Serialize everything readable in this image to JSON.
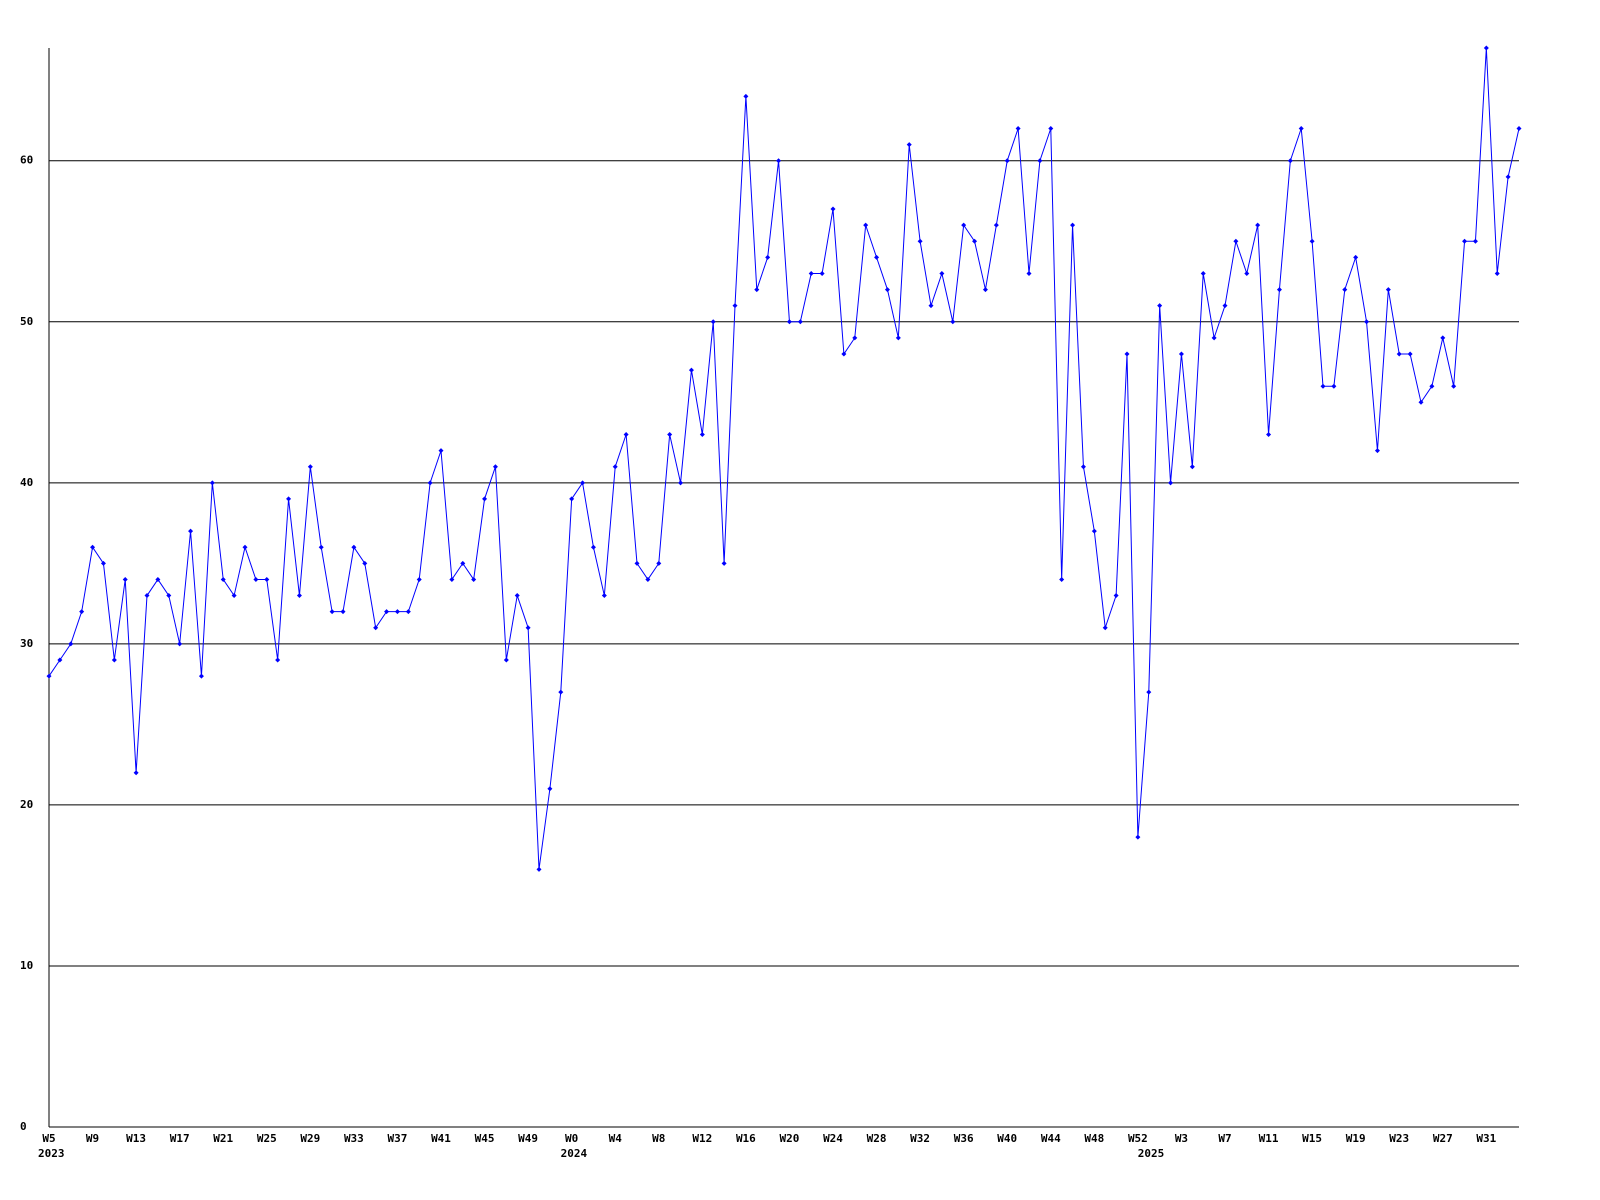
{
  "chart_data": {
    "type": "line",
    "color": "#0000ff",
    "grid": true,
    "categories": [
      "W5",
      null,
      null,
      null,
      "W9",
      null,
      null,
      null,
      "W13",
      null,
      null,
      null,
      "W17",
      null,
      null,
      null,
      "W21",
      null,
      null,
      null,
      "W25",
      null,
      null,
      null,
      "W29",
      null,
      null,
      null,
      "W33",
      null,
      null,
      null,
      "W37",
      null,
      null,
      null,
      "W41",
      null,
      null,
      null,
      "W45",
      null,
      null,
      null,
      "W49",
      null,
      null,
      null,
      "W0",
      null,
      null,
      null,
      "W4",
      null,
      null,
      null,
      "W8",
      null,
      null,
      null,
      "W12",
      null,
      null,
      null,
      "W16",
      null,
      null,
      null,
      "W20",
      null,
      null,
      null,
      "W24",
      null,
      null,
      null,
      "W28",
      null,
      null,
      null,
      "W32",
      null,
      null,
      null,
      "W36",
      null,
      null,
      null,
      "W40",
      null,
      null,
      null,
      "W44",
      null,
      null,
      null,
      "W48",
      null,
      null,
      null,
      "W52",
      null,
      null,
      null,
      "W3",
      null,
      null,
      null,
      "W7",
      null,
      null,
      null,
      "W11",
      null,
      null,
      null,
      "W15",
      null,
      null,
      null,
      "W19",
      null,
      null,
      null,
      "W23",
      null,
      null,
      null,
      "W27",
      null,
      null,
      null,
      "W31",
      null,
      null,
      null
    ],
    "years": [
      "2023",
      null,
      null,
      null,
      null,
      null,
      null,
      null,
      null,
      null,
      null,
      null,
      null,
      null,
      null,
      null,
      null,
      null,
      null,
      null,
      null,
      null,
      null,
      null,
      null,
      null,
      null,
      null,
      null,
      null,
      null,
      null,
      null,
      null,
      null,
      null,
      null,
      null,
      null,
      null,
      null,
      null,
      null,
      null,
      null,
      null,
      null,
      null,
      "2024",
      null,
      null,
      null,
      null,
      null,
      null,
      null,
      null,
      null,
      null,
      null,
      null,
      null,
      null,
      null,
      null,
      null,
      null,
      null,
      null,
      null,
      null,
      null,
      null,
      null,
      null,
      null,
      null,
      null,
      null,
      null,
      null,
      null,
      null,
      null,
      null,
      null,
      null,
      null,
      null,
      null,
      null,
      null,
      null,
      null,
      null,
      null,
      null,
      null,
      null,
      null,
      null,
      "2025",
      null,
      null,
      null,
      null,
      null,
      null,
      null,
      null,
      null,
      null,
      null,
      null,
      null,
      null,
      null,
      null,
      null,
      null,
      null,
      null,
      null,
      null,
      null,
      null,
      null,
      null,
      null,
      null,
      null,
      null,
      null,
      null,
      null,
      null
    ],
    "values": [
      28,
      29,
      30,
      32,
      36,
      35,
      29,
      34,
      22,
      33,
      34,
      33,
      30,
      37,
      28,
      40,
      34,
      33,
      36,
      34,
      34,
      29,
      39,
      33,
      41,
      36,
      32,
      32,
      36,
      35,
      31,
      32,
      32,
      32,
      34,
      40,
      42,
      34,
      35,
      34,
      39,
      41,
      29,
      33,
      31,
      16,
      21,
      27,
      39,
      40,
      36,
      33,
      41,
      43,
      35,
      34,
      35,
      43,
      40,
      47,
      43,
      50,
      35,
      51,
      64,
      52,
      54,
      60,
      50,
      50,
      53,
      53,
      57,
      48,
      49,
      56,
      54,
      52,
      49,
      61,
      55,
      51,
      53,
      50,
      56,
      55,
      52,
      56,
      60,
      62,
      53,
      60,
      62,
      34,
      56,
      41,
      37,
      31,
      33,
      48,
      18,
      27,
      51,
      40,
      48,
      41,
      53,
      49,
      51,
      55,
      53,
      56,
      43,
      52,
      60,
      62,
      55,
      46,
      46,
      52,
      54,
      50,
      42,
      52,
      48,
      48,
      45,
      46,
      49,
      46,
      55,
      55,
      67,
      53,
      59,
      62
    ],
    "ylim": [
      0,
      67
    ],
    "yticks": [
      0,
      10,
      20,
      30,
      40,
      50,
      60
    ]
  }
}
